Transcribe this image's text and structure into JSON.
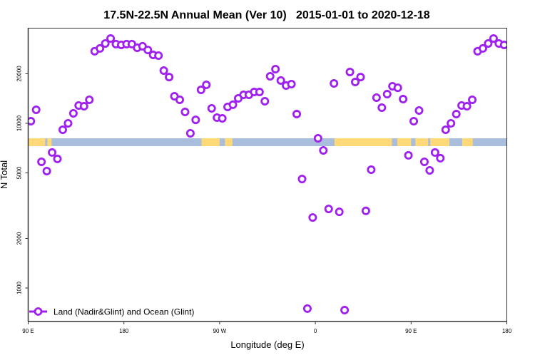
{
  "chart_data": {
    "type": "scatter",
    "title": "17.5N-22.5N Annual Mean (Ver 10)   2015-01-01 to 2020-12-18",
    "xlabel": "Longitude (deg E)",
    "ylabel": "N Total",
    "y_scale": "log",
    "ylim": [
      600,
      36000
    ],
    "xlim_deg_east": [
      90,
      540
    ],
    "x_ticks": [
      {
        "value": 90,
        "label": "90 E"
      },
      {
        "value": 180,
        "label": "180"
      },
      {
        "value": 270,
        "label": "90 W"
      },
      {
        "value": 360,
        "label": "0"
      },
      {
        "value": 450,
        "label": "90 E"
      },
      {
        "value": 540,
        "label": "180"
      }
    ],
    "y_ticks": [
      {
        "value": 1000,
        "label": "1000"
      },
      {
        "value": 2000,
        "label": "2000"
      },
      {
        "value": 5000,
        "label": "5000"
      },
      {
        "value": 10000,
        "label": "10000"
      },
      {
        "value": 20000,
        "label": "20000"
      }
    ],
    "grid": false,
    "legend_position": "bottom-left",
    "colors": {
      "series": "#A020F0",
      "land": "#FFD878",
      "ocean": "#A8BEDC"
    },
    "series": [
      {
        "name": "Land (Nadir&Glint) and Ocean (Glint)",
        "x": [
          92.5,
          97.5,
          102.5,
          107.5,
          112.5,
          117.5,
          122.5,
          127.5,
          132.5,
          137.5,
          142.5,
          147.5,
          152.5,
          157.5,
          162.5,
          167.5,
          172.5,
          177.5,
          -177.5,
          -172.5,
          -167.5,
          -162.5,
          -157.5,
          -152.5,
          -147.5,
          -142.5,
          -137.5,
          -132.5,
          -127.5,
          -122.5,
          -117.5,
          -112.5,
          -107.5,
          -102.5,
          -97.5,
          -92.5,
          -87.5,
          -82.5,
          -77.5,
          -72.5,
          -67.5,
          -62.5,
          -57.5,
          -52.5,
          -47.5,
          -42.5,
          -37.5,
          -32.5,
          -27.5,
          -22.5,
          -17.5,
          -12.5,
          -7.5,
          -2.5,
          2.5,
          7.5,
          12.5,
          17.5,
          22.5,
          27.5,
          32.5,
          37.5,
          42.5,
          47.5,
          52.5,
          57.5,
          62.5,
          67.5,
          72.5,
          77.5,
          82.5,
          87.5,
          92.5,
          97.5,
          102.5,
          107.5,
          112.5,
          117.5,
          122.5,
          127.5,
          132.5,
          137.5,
          142.5,
          147.5,
          152.5,
          157.5,
          162.5,
          167.5,
          172.5,
          177.5
        ],
        "y": [
          10300,
          12080,
          5840,
          5130,
          6650,
          6080,
          9140,
          10000,
          11500,
          12830,
          12700,
          13900,
          27400,
          28500,
          30550,
          32740,
          30270,
          29940,
          30270,
          30270,
          28770,
          29380,
          27900,
          26040,
          25780,
          20900,
          19100,
          14600,
          13900,
          11730,
          8700,
          10500,
          15970,
          17130,
          12330,
          10830,
          10720,
          12580,
          12970,
          14180,
          14900,
          14900,
          15500,
          15500,
          13620,
          19300,
          21330,
          18200,
          16950,
          17300,
          11380,
          4590,
          750,
          2680,
          8110,
          6850,
          3020,
          17470,
          2900,
          734,
          20500,
          17820,
          19100,
          2940,
          5230,
          14320,
          12450,
          15040,
          16790,
          16440,
          14030,
          6390,
          10300,
          11970,
          5840,
          5180,
          6650,
          6140,
          9140,
          10000,
          11380,
          12830,
          12700,
          13900,
          27400,
          28500,
          30550,
          32740,
          30550,
          29940
        ]
      }
    ]
  }
}
